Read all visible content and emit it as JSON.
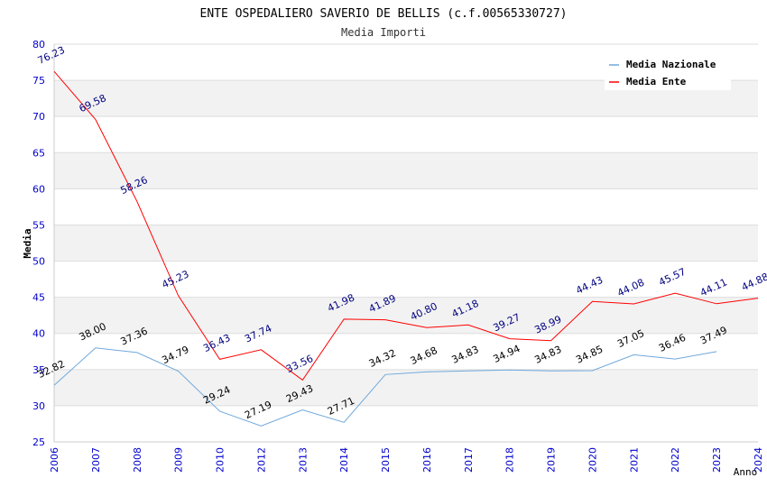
{
  "chart_data": {
    "type": "line",
    "title": "ENTE OSPEDALIERO SAVERIO DE BELLIS (c.f.00565330727)",
    "subtitle": "Media Importi",
    "xlabel": "Anno",
    "ylabel": "Media",
    "ylim": [
      25,
      80
    ],
    "yticks": [
      "25",
      "30",
      "35",
      "40",
      "45",
      "50",
      "55",
      "60",
      "65",
      "70",
      "75",
      "80"
    ],
    "categories": [
      "2006",
      "2007",
      "2008",
      "2009",
      "2010",
      "2012",
      "2013",
      "2014",
      "2015",
      "2016",
      "2017",
      "2018",
      "2019",
      "2020",
      "2021",
      "2022",
      "2023",
      "2024"
    ],
    "series": [
      {
        "name": "Media Nazionale",
        "color": "#6fa8dc",
        "label_color": "#000000",
        "values": [
          32.82,
          38.0,
          37.36,
          34.79,
          29.24,
          27.19,
          29.43,
          27.71,
          34.32,
          34.68,
          34.83,
          34.94,
          34.83,
          34.85,
          37.05,
          36.46,
          37.49,
          null
        ],
        "labels": [
          "32.82",
          "38.00",
          "37.36",
          "34.79",
          "29.24",
          "27.19",
          "29.43",
          "27.71",
          "34.32",
          "34.68",
          "34.83",
          "34.94",
          "34.83",
          "34.85",
          "37.05",
          "36.46",
          "37.49",
          ""
        ]
      },
      {
        "name": "Media Ente",
        "color": "#ff0000",
        "label_color": "#000080",
        "values": [
          76.23,
          69.58,
          58.26,
          45.23,
          36.43,
          37.74,
          33.56,
          41.98,
          41.89,
          40.8,
          41.18,
          39.27,
          38.99,
          44.43,
          44.08,
          45.57,
          44.11,
          44.88
        ],
        "labels": [
          "76.23",
          "69.58",
          "58.26",
          "45.23",
          "36.43",
          "37.74",
          "33.56",
          "41.98",
          "41.89",
          "40.80",
          "41.18",
          "39.27",
          "38.99",
          "44.43",
          "44.08",
          "45.57",
          "44.11",
          "44.88"
        ]
      }
    ],
    "grid": "alternating horizontal bands",
    "band_color": "#f2f2f2",
    "legend_position": "top-right"
  }
}
